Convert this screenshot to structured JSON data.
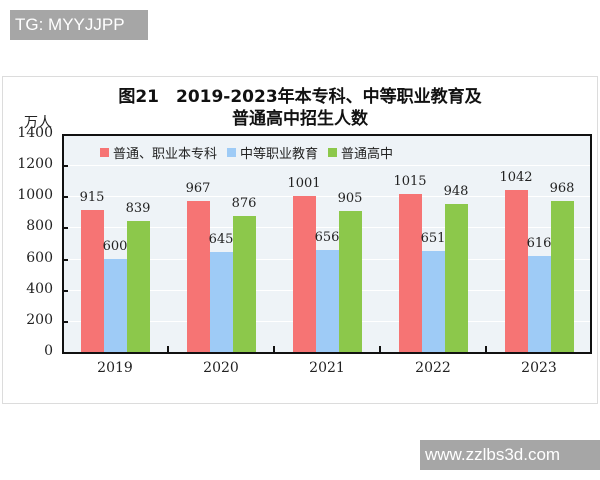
{
  "watermarks": {
    "top_left": "TG: MYYJJPP",
    "bottom_right": "www.zzlbs3d.com"
  },
  "title_line1": "图21　2019-2023年本专科、中等职业教育及",
  "title_line2": "普通高中招生人数",
  "unit": "万人",
  "colors": {
    "series1": "#f67474",
    "series2": "#9ecbf6",
    "series3": "#8cc84b",
    "plot_bg": "#eef3f7"
  },
  "chart_data": {
    "type": "bar",
    "title": "图21 2019-2023年本专科、中等职业教育及普通高中招生人数",
    "xlabel": "",
    "ylabel": "万人",
    "ylim": [
      0,
      1400
    ],
    "yticks": [
      0,
      200,
      400,
      600,
      800,
      1000,
      1200,
      1400
    ],
    "categories": [
      "2019",
      "2020",
      "2021",
      "2022",
      "2023"
    ],
    "series": [
      {
        "name": "普通、职业本专科",
        "values": [
          915,
          967,
          1001,
          1015,
          1042
        ]
      },
      {
        "name": "中等职业教育",
        "values": [
          600,
          645,
          656,
          651,
          616
        ]
      },
      {
        "name": "普通高中",
        "values": [
          839,
          876,
          905,
          948,
          968
        ]
      }
    ],
    "legend_position": "top-left inside",
    "grid": true
  }
}
